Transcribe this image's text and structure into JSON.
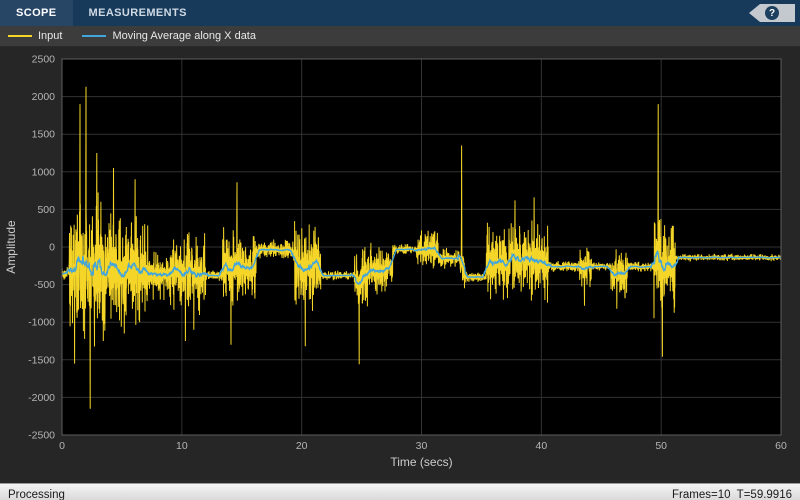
{
  "window": {
    "toolbar": {
      "tabs": [
        {
          "label": "SCOPE"
        },
        {
          "label": "MEASUREMENTS"
        }
      ],
      "help_label": "?"
    },
    "legend": {
      "items": [
        {
          "label": "Input",
          "color": "#f5d628"
        },
        {
          "label": "Moving Average along X data",
          "color": "#42a5dc"
        }
      ]
    },
    "status": {
      "left": "Processing",
      "right": "Frames=10  T=59.9916"
    }
  },
  "chart_data": {
    "type": "line",
    "title": "",
    "xlabel": "Time (secs)",
    "ylabel": "Amplitude",
    "xlim": [
      0,
      60
    ],
    "ylim": [
      -2500,
      2500
    ],
    "xticks": [
      0,
      10,
      20,
      30,
      40,
      50,
      60
    ],
    "yticks": [
      -2500,
      -2000,
      -1500,
      -1000,
      -500,
      0,
      500,
      1000,
      1500,
      2000,
      2500
    ],
    "grid": true,
    "background": "#000000",
    "grid_color": "#323232",
    "axis_color": "#5e5e5e",
    "tick_label_color": "#b5b5b5",
    "axis_label_color": "#cccccc",
    "legend_position": "top",
    "series": [
      {
        "name": "Input",
        "color": "#f5d628",
        "width": 1
      },
      {
        "name": "Moving Average along X data",
        "color": "#42a5dc",
        "width": 1.3
      }
    ],
    "sample_rate": 80,
    "seed": 7,
    "moving_average_window": 45,
    "envelope": [
      [
        0.0,
        0.6,
        -350,
        90
      ],
      [
        0.6,
        3.6,
        -280,
        900
      ],
      [
        3.6,
        7.2,
        -300,
        700
      ],
      [
        7.2,
        9.0,
        -350,
        320
      ],
      [
        9.0,
        12.0,
        -300,
        520
      ],
      [
        12.0,
        13.4,
        -380,
        70
      ],
      [
        13.4,
        16.2,
        -250,
        480
      ],
      [
        16.2,
        19.4,
        -40,
        130
      ],
      [
        19.4,
        21.6,
        -220,
        540
      ],
      [
        21.6,
        24.4,
        -380,
        60
      ],
      [
        24.4,
        25.6,
        -400,
        420
      ],
      [
        25.6,
        27.6,
        -300,
        300
      ],
      [
        27.6,
        29.6,
        -30,
        70
      ],
      [
        29.6,
        31.4,
        -40,
        280
      ],
      [
        31.4,
        33.2,
        -150,
        130
      ],
      [
        33.2,
        33.6,
        -220,
        300
      ],
      [
        33.6,
        35.4,
        -400,
        70
      ],
      [
        35.4,
        40.6,
        -180,
        500
      ],
      [
        40.6,
        43.2,
        -260,
        70
      ],
      [
        43.2,
        44.2,
        -280,
        280
      ],
      [
        44.2,
        45.8,
        -260,
        60
      ],
      [
        45.8,
        47.2,
        -320,
        320
      ],
      [
        47.2,
        49.4,
        -260,
        70
      ],
      [
        49.4,
        51.2,
        -250,
        650
      ],
      [
        51.2,
        60.0,
        -140,
        45
      ]
    ],
    "spikes": [
      [
        1.05,
        -1550
      ],
      [
        1.5,
        1900
      ],
      [
        2.0,
        2130
      ],
      [
        2.35,
        -2150
      ],
      [
        2.9,
        1250
      ],
      [
        3.45,
        -1250
      ],
      [
        4.3,
        1050
      ],
      [
        5.2,
        -1150
      ],
      [
        6.1,
        900
      ],
      [
        10.3,
        -1250
      ],
      [
        11.0,
        -1100
      ],
      [
        14.1,
        -1300
      ],
      [
        14.6,
        860
      ],
      [
        20.3,
        -1320
      ],
      [
        20.9,
        -850
      ],
      [
        24.8,
        -1560
      ],
      [
        33.35,
        1350
      ],
      [
        37.8,
        620
      ],
      [
        39.4,
        660
      ],
      [
        43.6,
        -780
      ],
      [
        46.3,
        -820
      ],
      [
        49.75,
        1900
      ],
      [
        50.1,
        -1460
      ]
    ]
  }
}
